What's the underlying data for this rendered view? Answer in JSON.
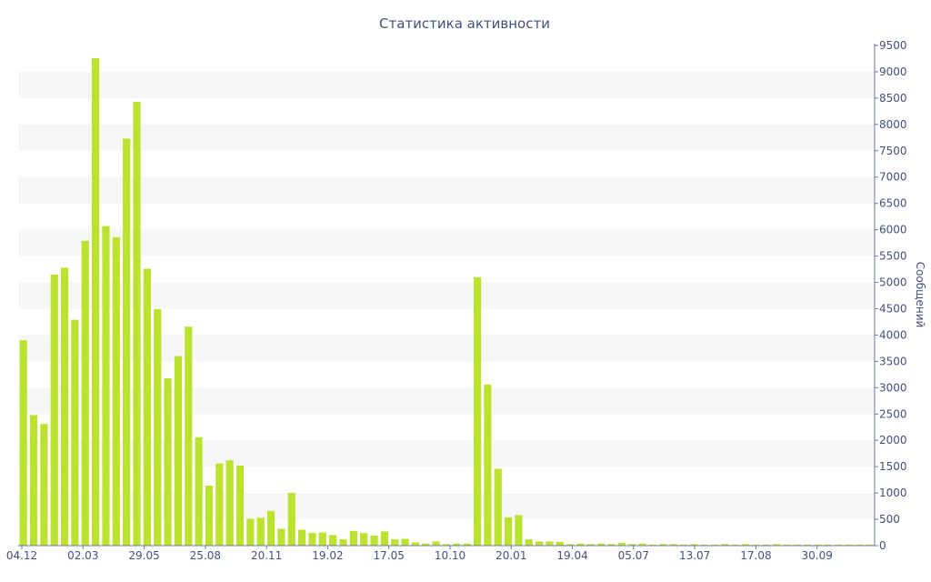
{
  "chart_data": {
    "type": "bar",
    "title": "Статистика активности",
    "xlabel": "",
    "ylabel": "Сообщений",
    "ylim": [
      0,
      9500
    ],
    "ytick_step": 500,
    "x_tick_labels": [
      "04.12",
      "02.03",
      "29.05",
      "25.08",
      "20.11",
      "19.02",
      "17.05",
      "10.10",
      "20.01",
      "19.04",
      "05.07",
      "13.07",
      "17.08",
      "30.09"
    ],
    "y_axis_position": "right",
    "grid": "alternating-bands",
    "bar_color": "#bce230",
    "values": [
      3900,
      2480,
      2310,
      5150,
      5280,
      4290,
      5790,
      9260,
      6070,
      5860,
      7730,
      8430,
      5260,
      4490,
      3180,
      3600,
      4160,
      2060,
      1140,
      1560,
      1620,
      1520,
      510,
      530,
      660,
      320,
      1000,
      300,
      240,
      250,
      200,
      120,
      280,
      240,
      190,
      270,
      120,
      130,
      60,
      40,
      80,
      30,
      40,
      40,
      5100,
      3060,
      1460,
      540,
      580,
      120,
      80,
      80,
      70,
      30,
      40,
      30,
      40,
      30,
      50,
      30,
      40,
      20,
      30,
      30,
      20,
      30,
      20,
      20,
      30,
      20,
      30,
      20,
      20,
      30,
      20,
      20,
      20,
      20,
      20,
      20,
      20,
      20,
      20
    ]
  }
}
